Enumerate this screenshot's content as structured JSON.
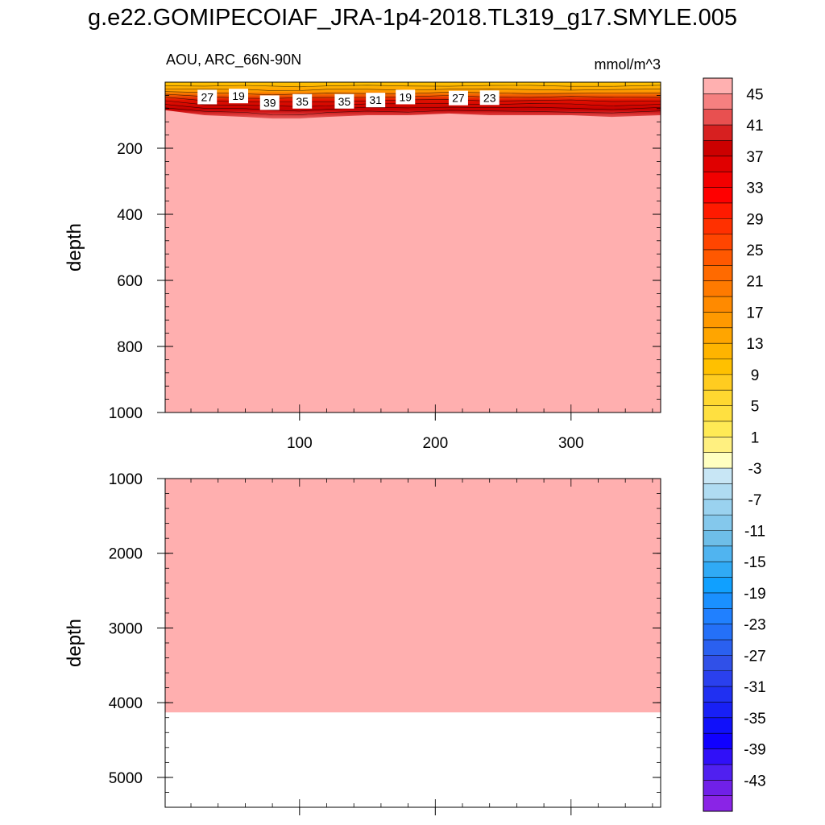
{
  "title": "g.e22.GOMIPECOIAF_JRA-1p4-2018.TL319_g17.SMYLE.005",
  "left_header": "AOU, ARC_66N-90N",
  "right_header": "mmol/m^3",
  "chart_data": [
    {
      "type": "heatmap",
      "panel": "upper",
      "ylabel": "depth",
      "xlim": [
        1,
        366
      ],
      "ylim": [
        0,
        1000
      ],
      "y_reversed": true,
      "x_ticks": [
        100,
        200,
        300
      ],
      "x_tick_labels": [
        "100",
        "200",
        "300"
      ],
      "y_ticks": [
        200,
        400,
        600,
        800,
        1000
      ],
      "y_tick_labels": [
        "200",
        "400",
        "600",
        "800",
        "1000"
      ],
      "background_value_color": "#ffafaf",
      "surface_layer": {
        "description_values": "orange/red contoured near-surface layer above ~100-120 m",
        "lower_boundary_depth_x": [
          1,
          30,
          60,
          80,
          100,
          120,
          150,
          180,
          210,
          240,
          270,
          300,
          330,
          366
        ],
        "lower_boundary_depth_y": [
          85,
          100,
          105,
          110,
          110,
          105,
          100,
          100,
          95,
          100,
          100,
          100,
          105,
          100
        ]
      },
      "contour_labels": [
        {
          "x": 32,
          "depth": 45,
          "text": "27"
        },
        {
          "x": 55,
          "depth": 42,
          "text": "19"
        },
        {
          "x": 78,
          "depth": 62,
          "text": "39"
        },
        {
          "x": 102,
          "depth": 58,
          "text": "35"
        },
        {
          "x": 133,
          "depth": 58,
          "text": "35"
        },
        {
          "x": 156,
          "depth": 54,
          "text": "31"
        },
        {
          "x": 178,
          "depth": 45,
          "text": "19"
        },
        {
          "x": 217,
          "depth": 48,
          "text": "27"
        },
        {
          "x": 240,
          "depth": 47,
          "text": "23"
        }
      ]
    },
    {
      "type": "heatmap",
      "panel": "lower",
      "ylabel": "depth",
      "xlim": [
        1,
        366
      ],
      "ylim": [
        1000,
        5400
      ],
      "y_reversed": true,
      "y_ticks": [
        1000,
        2000,
        3000,
        4000,
        5000
      ],
      "y_tick_labels": [
        "1000",
        "2000",
        "3000",
        "4000",
        "5000"
      ],
      "background_value_color": "#ffafaf",
      "data_bottom_depth": 4130
    }
  ],
  "colorbar": {
    "labels": [
      "45",
      "41",
      "37",
      "33",
      "29",
      "25",
      "21",
      "17",
      "13",
      "9",
      "5",
      "1",
      "-3",
      "-7",
      "-11",
      "-15",
      "-19",
      "-23",
      "-27",
      "-31",
      "-35",
      "-39",
      "-43"
    ],
    "colors": [
      "#ffb0b0",
      "#f58080",
      "#e85050",
      "#d72020",
      "#cc0000",
      "#e00000",
      "#f20000",
      "#ff0000",
      "#ff1a00",
      "#ff3000",
      "#ff4500",
      "#ff5800",
      "#ff6a00",
      "#ff7a00",
      "#ff8a00",
      "#ff9900",
      "#ffa500",
      "#ffb400",
      "#ffc000",
      "#ffcc20",
      "#ffd830",
      "#ffe040",
      "#ffea55",
      "#fff080",
      "#ffffc0",
      "#c8e6f5",
      "#b0dcf2",
      "#9ad2ef",
      "#84c8ec",
      "#6ebee8",
      "#50b4f0",
      "#30aaf5",
      "#10a0ff",
      "#1a90ff",
      "#2080ff",
      "#2470f8",
      "#2a60f0",
      "#3050e8",
      "#2a40ee",
      "#2030f2",
      "#1820f6",
      "#1010fa",
      "#1000ff",
      "#3010f8",
      "#5020f0",
      "#7020e8",
      "#8a24e6"
    ]
  }
}
